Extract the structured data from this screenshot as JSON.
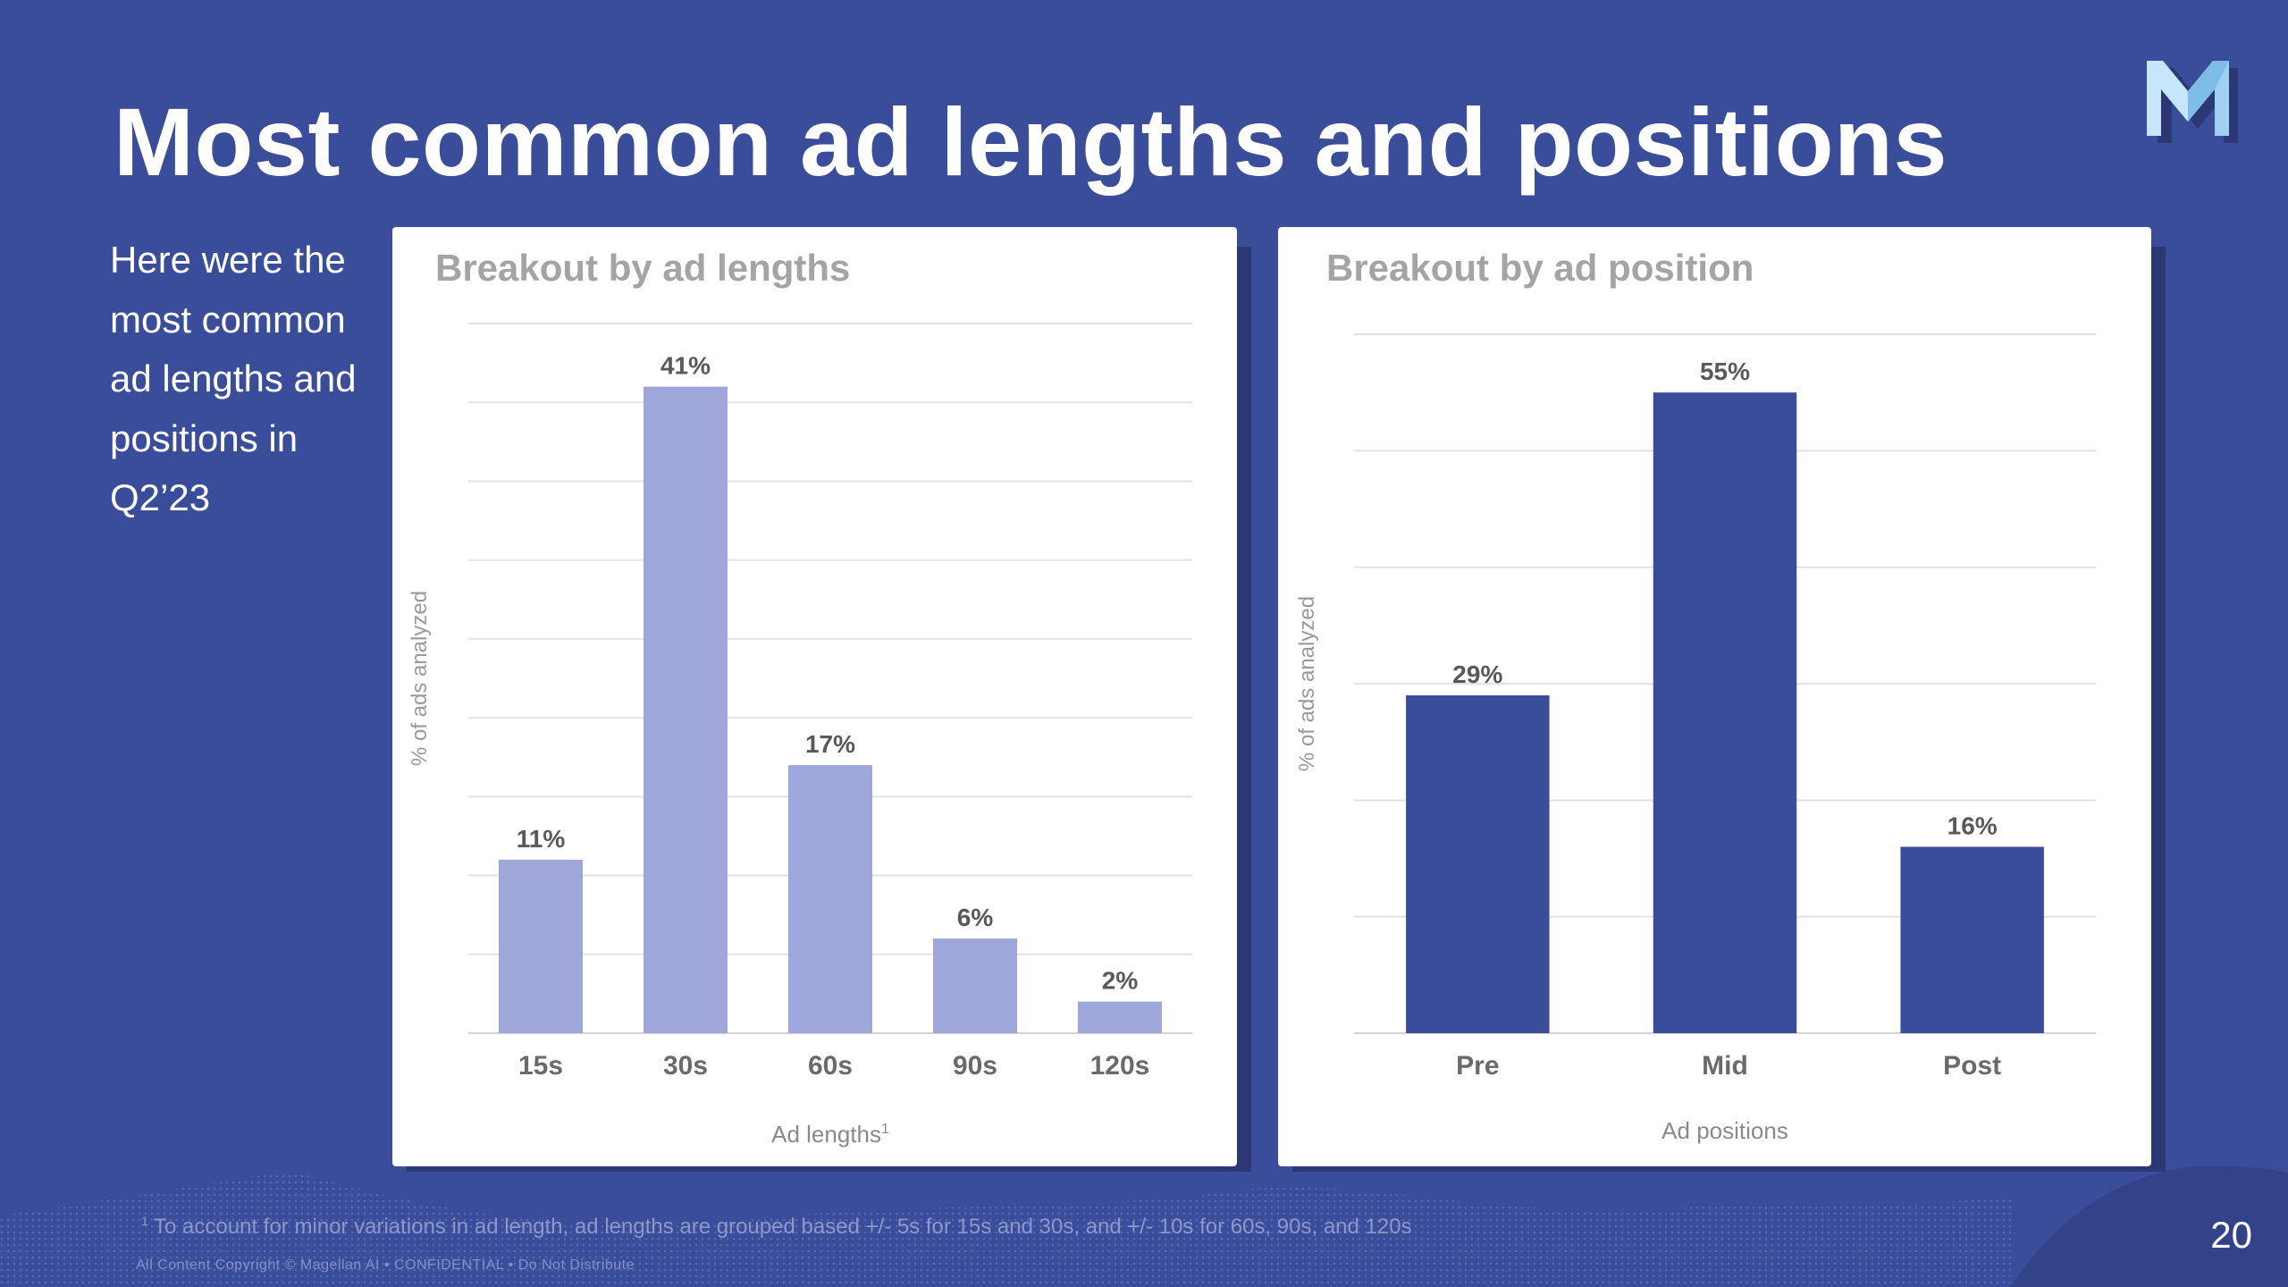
{
  "slide": {
    "title": "Most common ad lengths and positions",
    "intro_lines": [
      "Here were the",
      "most common",
      "ad lengths and",
      "positions in",
      "Q2’23"
    ],
    "footnote_marker": "1",
    "footnote": "To account for minor variations in ad length, ad lengths are grouped based +/- 5s for 15s and 30s, and +/- 10s for 60s, 90s, and 120s",
    "copyright": "All Content Copyright © Magellan AI  •  CONFIDENTIAL  •  Do Not Distribute",
    "page_number": "20",
    "logo": "magellan-m-logo"
  },
  "colors": {
    "background": "#3a4d9b",
    "bar_lengths": "#9fa6da",
    "bar_positions": "#3a4d9b",
    "card_title": "#a4a4a4",
    "label": "#595959"
  },
  "chart_data": [
    {
      "type": "bar",
      "title": "Breakout by ad lengths",
      "xlabel": "Ad lengths",
      "xlabel_superscript": "1",
      "ylabel": "% of ads analyzed",
      "categories": [
        "15s",
        "30s",
        "60s",
        "90s",
        "120s"
      ],
      "values": [
        11,
        41,
        17,
        6,
        2
      ],
      "value_labels": [
        "11%",
        "41%",
        "17%",
        "6%",
        "2%"
      ],
      "ylim": [
        0,
        45
      ],
      "y_gridline_step": 5,
      "grid": true,
      "legend": "none"
    },
    {
      "type": "bar",
      "title": "Breakout by ad position",
      "xlabel": "Ad positions",
      "ylabel": "% of ads analyzed",
      "categories": [
        "Pre",
        "Mid",
        "Post"
      ],
      "values": [
        29,
        55,
        16
      ],
      "value_labels": [
        "29%",
        "55%",
        "16%"
      ],
      "ylim": [
        0,
        60
      ],
      "y_gridline_step": 10,
      "grid": true,
      "legend": "none"
    }
  ]
}
